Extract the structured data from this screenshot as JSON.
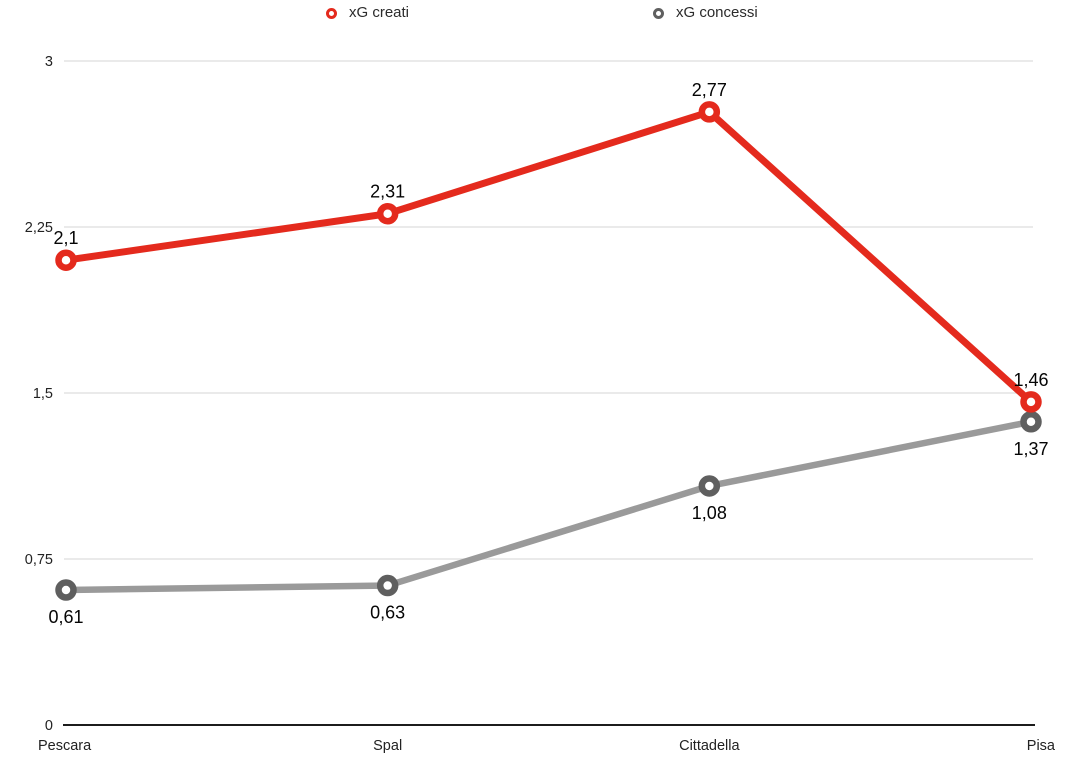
{
  "chart_data": {
    "type": "line",
    "categories": [
      "Pescara",
      "Spal",
      "Cittadella",
      "Pisa"
    ],
    "series": [
      {
        "name": "xG creati",
        "values": [
          2.1,
          2.31,
          2.77,
          1.46
        ],
        "labels": [
          "2,1",
          "2,31",
          "2,77",
          "1,46"
        ],
        "color": "#e42a1d",
        "marker_ring_color": "#e42a1d",
        "label_position": "above"
      },
      {
        "name": "xG concessi",
        "values": [
          0.61,
          0.63,
          1.08,
          1.37
        ],
        "labels": [
          "0,61",
          "0,63",
          "1,08",
          "1,37"
        ],
        "color": "#9a9a9a",
        "marker_ring_color": "#5f5f5f",
        "label_position": "below"
      }
    ],
    "y_ticks": [
      {
        "value": 3,
        "label": "3"
      },
      {
        "value": 2.25,
        "label": "2,25"
      },
      {
        "value": 1.5,
        "label": "1,5"
      },
      {
        "value": 0.75,
        "label": "0,75"
      },
      {
        "value": 0,
        "label": "0"
      }
    ],
    "ylim": [
      0,
      3
    ],
    "xlabel": "",
    "ylabel": "",
    "title": "",
    "grid": "horizontal",
    "legend_position": "top",
    "colors": {
      "grid": "#e3e3e3",
      "axis": "#1c1c1c",
      "tick_text": "#222222",
      "label_text": "#050505",
      "background": "#ffffff"
    }
  }
}
